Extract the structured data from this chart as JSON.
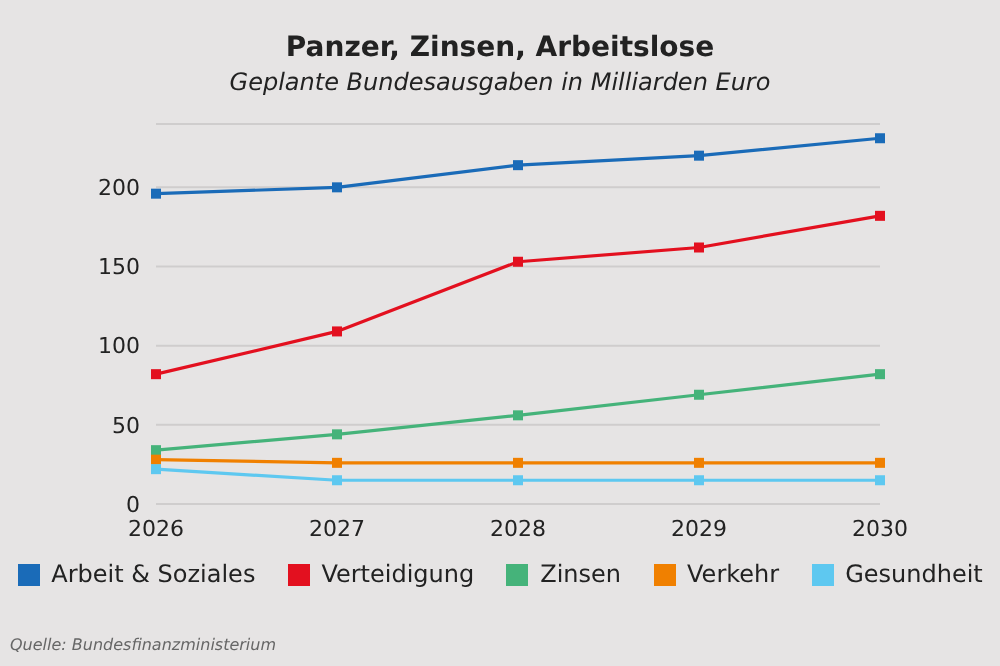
{
  "chart_data": {
    "type": "line",
    "title": "Panzer, Zinsen, Arbeitslose",
    "subtitle": "Geplante Bundesausgaben in Milliarden Euro",
    "categories": [
      "2026",
      "2027",
      "2028",
      "2029",
      "2030"
    ],
    "series": [
      {
        "name": "Arbeit & Soziales",
        "color": "#1a6bb8",
        "values": [
          196,
          200,
          214,
          220,
          231
        ]
      },
      {
        "name": "Verteidigung",
        "color": "#e3101f",
        "values": [
          82,
          109,
          153,
          162,
          182
        ]
      },
      {
        "name": "Zinsen",
        "color": "#45b37a",
        "values": [
          34,
          44,
          56,
          69,
          82
        ]
      },
      {
        "name": "Verkehr",
        "color": "#f08000",
        "values": [
          28,
          26,
          26,
          26,
          26
        ]
      },
      {
        "name": "Gesundheit",
        "color": "#5ec8f0",
        "values": [
          22,
          15,
          15,
          15,
          15
        ]
      }
    ],
    "ylim": [
      0,
      240
    ],
    "yticks": [
      0,
      50,
      100,
      150,
      200
    ],
    "grid": "y",
    "legend": "bottom",
    "marker": "square",
    "line_style": "solid",
    "annotations": [
      "Quelle: Bundesfinanzministerium"
    ]
  }
}
